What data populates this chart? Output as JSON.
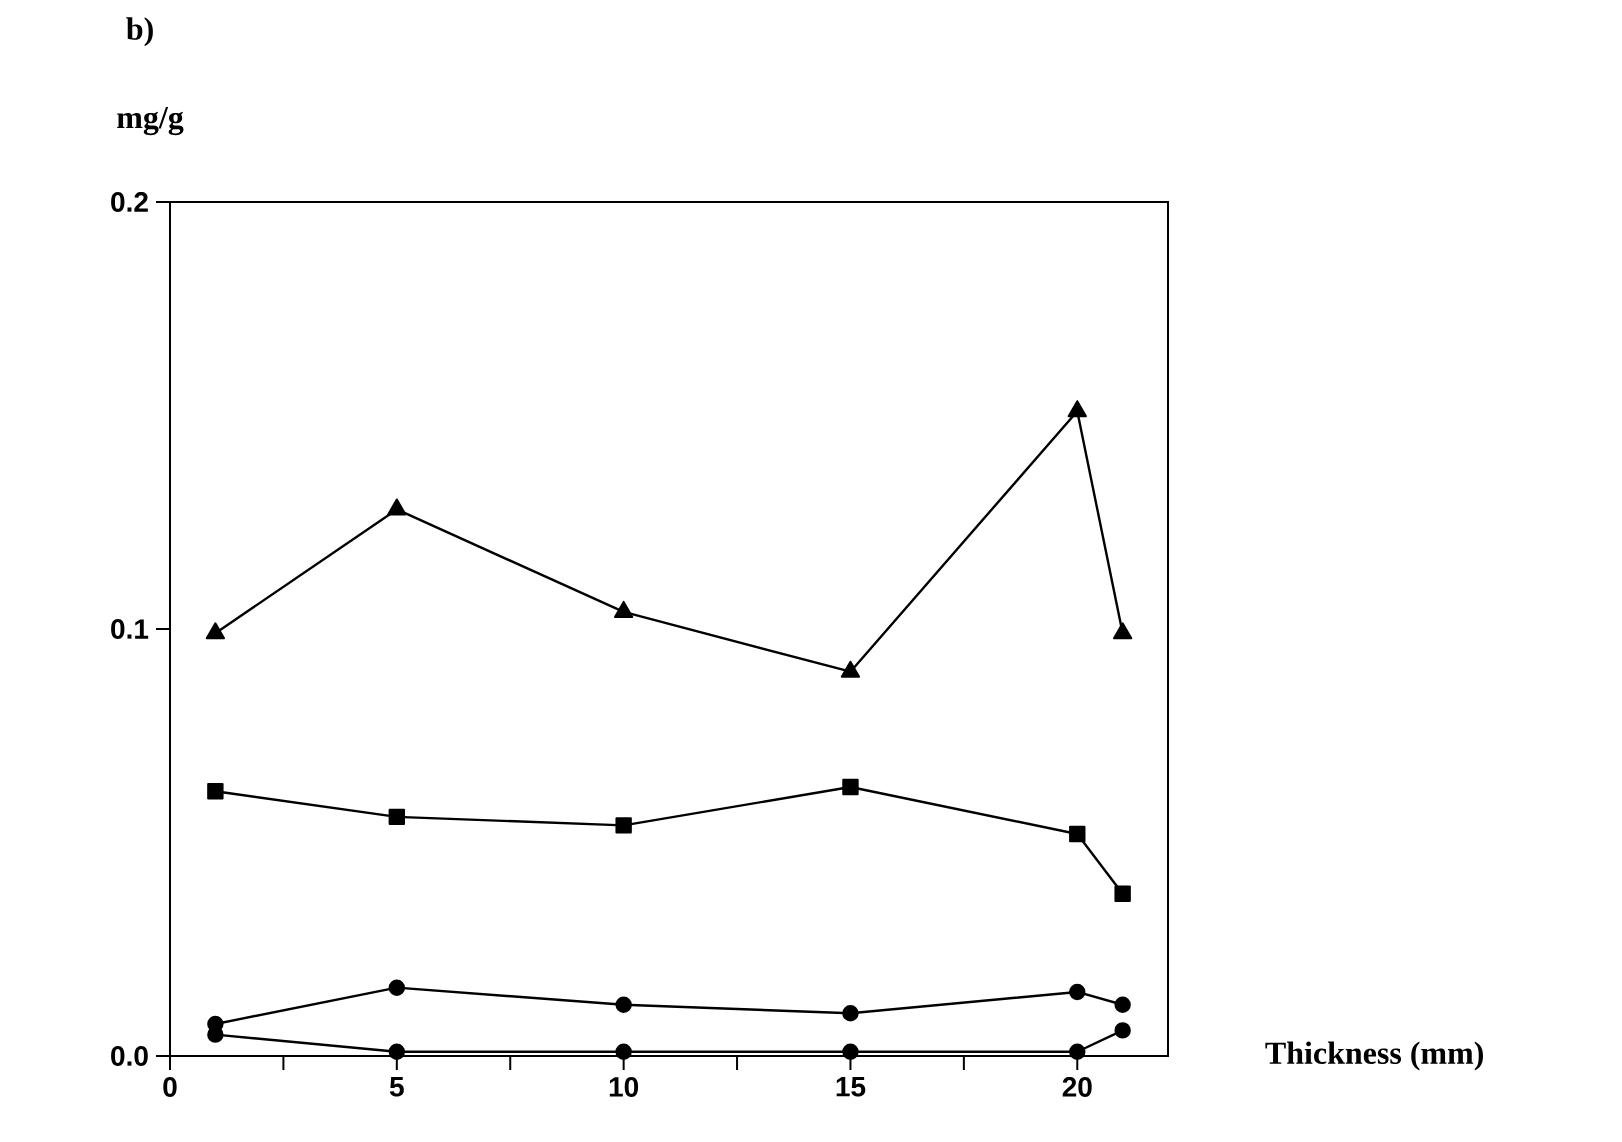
{
  "chart_data": {
    "type": "line",
    "title": "b)",
    "xlabel": "Thickness (mm)",
    "ylabel": "mg/g",
    "xlim": [
      0,
      22
    ],
    "ylim": [
      0,
      0.2
    ],
    "xticks": [
      0,
      {
        "value": 2.5,
        "label": null
      },
      5,
      {
        "value": 7.5,
        "label": null
      },
      10,
      {
        "value": 12.5,
        "label": null
      },
      15,
      {
        "value": 17.5,
        "label": null
      },
      20
    ],
    "yticks": [
      {
        "value": 0,
        "label": "0.0"
      },
      0.1,
      0.2
    ],
    "x": [
      1,
      5,
      10,
      15,
      20,
      21
    ],
    "line_style": "solid",
    "series": [
      {
        "color": "#000000",
        "marker": "triangle",
        "values": [
          0.099,
          0.128,
          0.104,
          0.09,
          0.151,
          0.099
        ]
      },
      {
        "color": "#000000",
        "marker": "square",
        "values": [
          0.062,
          0.056,
          0.054,
          0.063,
          0.052,
          0.038
        ]
      },
      {
        "color": "#000000",
        "marker": "circle",
        "values": [
          0.0075,
          0.016,
          0.012,
          0.01,
          0.015,
          0.012
        ]
      },
      {
        "color": "#000000",
        "marker": "circle",
        "values": [
          0.005,
          0.001,
          0.001,
          0.001,
          0.001,
          0.006
        ]
      }
    ]
  }
}
